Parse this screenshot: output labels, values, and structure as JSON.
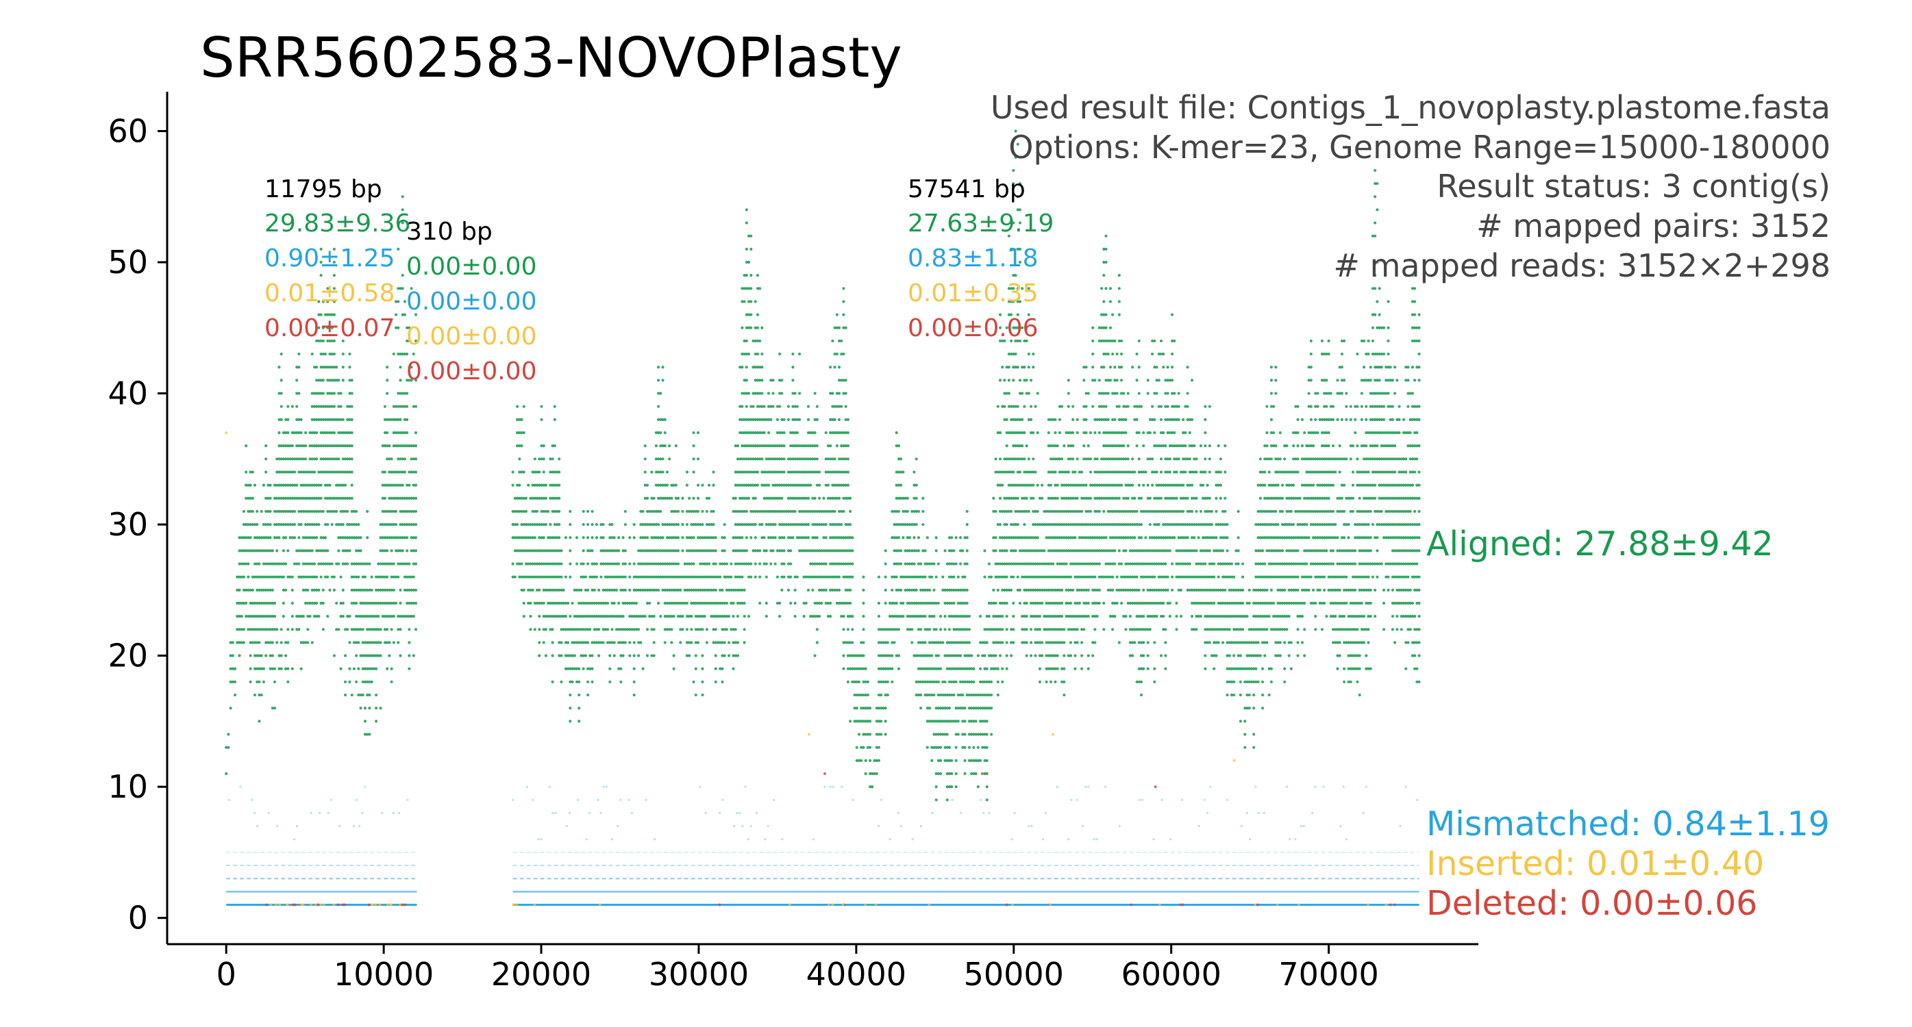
{
  "colors": {
    "aligned": "#189a4f",
    "mismatched": "#27a3e0",
    "inserted": "#f6c545",
    "deleted": "#d2453c",
    "info_text": "#444444",
    "axis": "#000000"
  },
  "chart_data": {
    "type": "scatter",
    "title": "SRR5602583-NOVOPlasty",
    "xlabel": "",
    "ylabel": "",
    "xlim": [
      -3750,
      79500
    ],
    "ylim": [
      -2,
      63
    ],
    "xticks": [
      0,
      10000,
      20000,
      30000,
      40000,
      50000,
      60000,
      70000
    ],
    "yticks": [
      0,
      10,
      20,
      30,
      40,
      50,
      60
    ],
    "grid": false,
    "info_lines": [
      "Used result file: Contigs_1_novoplasty.plastome.fasta",
      "Options: K-mer=23, Genome Range=15000-180000",
      "Result status: 3 contig(s)",
      "# mapped pairs: 3152",
      "# mapped reads: 3152×2+298"
    ],
    "contigs": [
      {
        "start": 0,
        "end": 11795,
        "length": "11795 bp",
        "aligned": "29.83±9.36",
        "mismatched": "0.90±1.25",
        "inserted": "0.01±0.58",
        "deleted": "0.00±0.07"
      },
      {
        "start": 11795,
        "end": 12105,
        "length": "310 bp",
        "aligned": "0.00±0.00",
        "mismatched": "0.00±0.00",
        "inserted": "0.00±0.00",
        "deleted": "0.00±0.00"
      },
      {
        "start": 18200,
        "end": 75741,
        "length": "57541 bp",
        "aligned": "27.63±9.19",
        "mismatched": "0.83±1.18",
        "inserted": "0.01±0.35",
        "deleted": "0.00±0.06"
      }
    ],
    "series": [
      {
        "name": "Aligned",
        "legend": "Aligned: 27.88±9.42",
        "color": "#189a4f",
        "x": [
          0,
          1000,
          2000,
          3000,
          4000,
          5000,
          6000,
          7000,
          8000,
          9000,
          10000,
          11000,
          18200,
          19000,
          20000,
          21000,
          22000,
          23000,
          24000,
          25000,
          26000,
          27000,
          28000,
          29000,
          30000,
          31000,
          32000,
          33000,
          34000,
          35000,
          36000,
          37000,
          38000,
          39000,
          40000,
          41000,
          42000,
          43000,
          44000,
          45000,
          46000,
          47000,
          48000,
          49000,
          50000,
          51000,
          52000,
          53000,
          54000,
          55000,
          56000,
          57000,
          58000,
          59000,
          60000,
          61000,
          62000,
          63000,
          64000,
          65000,
          66000,
          67000,
          68000,
          69000,
          70000,
          71000,
          72000,
          73000,
          74000,
          75000,
          75700
        ],
        "y": [
          12,
          27,
          26,
          31,
          33,
          32,
          40,
          36,
          35,
          22,
          25,
          30,
          30,
          29,
          27,
          26,
          25,
          24,
          24,
          25,
          26,
          28,
          30,
          28,
          26,
          25,
          26,
          32,
          35,
          34,
          33,
          32,
          31,
          34,
          17,
          15,
          21,
          32,
          22,
          17,
          16,
          15,
          14,
          22,
          29,
          27,
          25,
          24,
          26,
          29,
          31,
          30,
          27,
          25,
          29,
          32,
          25,
          24,
          22,
          19,
          26,
          29,
          30,
          30,
          27,
          23,
          21,
          36,
          34,
          29,
          26
        ],
        "ymax": [
          18,
          35,
          42,
          42,
          43,
          43,
          59,
          48,
          41,
          34,
          38,
          56,
          44,
          43,
          41,
          37,
          36,
          35,
          33,
          36,
          36,
          38,
          47,
          38,
          37,
          36,
          37,
          57,
          47,
          47,
          46,
          43,
          43,
          60,
          26,
          24,
          37,
          38,
          37,
          35,
          34,
          30,
          29,
          47,
          60,
          54,
          43,
          41,
          44,
          51,
          52,
          48,
          51,
          47,
          48,
          49,
          40,
          37,
          36,
          33,
          40,
          42,
          45,
          44,
          50,
          48,
          46,
          57,
          51,
          49,
          52
        ],
        "ymin": [
          8,
          18,
          12,
          14,
          17,
          16,
          20,
          17,
          15,
          12,
          14,
          18,
          20,
          19,
          17,
          16,
          13,
          15,
          17,
          16,
          15,
          18,
          19,
          17,
          15,
          16,
          16,
          19,
          22,
          22,
          22,
          19,
          19,
          18,
          8,
          7,
          12,
          17,
          13,
          8,
          8,
          10,
          6,
          14,
          20,
          18,
          16,
          15,
          16,
          18,
          20,
          18,
          15,
          16,
          18,
          20,
          17,
          16,
          13,
          11,
          14,
          17,
          18,
          19,
          18,
          15,
          14,
          20,
          19,
          17,
          15
        ]
      },
      {
        "name": "Mismatched",
        "legend": "Mismatched: 0.84±1.19",
        "color": "#27a3e0",
        "typical": 1,
        "max": 11
      },
      {
        "name": "Inserted",
        "legend": "Inserted: 0.01±0.40",
        "color": "#f6c545",
        "typical": 0,
        "max": 37
      },
      {
        "name": "Deleted",
        "legend": "Deleted: 0.00±0.06",
        "color": "#d2453c",
        "typical": 0,
        "max": 1
      }
    ]
  }
}
